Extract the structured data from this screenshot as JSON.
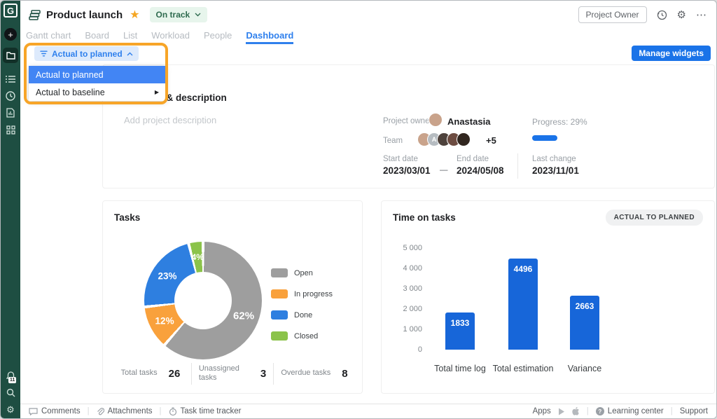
{
  "sidebar": {
    "logo_text": "G",
    "notification_count": "11"
  },
  "header": {
    "title": "Product launch",
    "status_pill": "On track",
    "owner_button": "Project Owner"
  },
  "tabs": [
    {
      "label": "Gantt chart",
      "active": false
    },
    {
      "label": "Board",
      "active": false
    },
    {
      "label": "List",
      "active": false
    },
    {
      "label": "Workload",
      "active": false
    },
    {
      "label": "People",
      "active": false
    },
    {
      "label": "Dashboard",
      "active": true
    }
  ],
  "filter": {
    "pill_label": "Actual to planned",
    "menu_items": [
      {
        "label": "Actual to planned",
        "selected": true,
        "has_submenu": false
      },
      {
        "label": "Actual to baseline",
        "selected": false,
        "has_submenu": true
      }
    ]
  },
  "toolbar": {
    "manage_widgets": "Manage widgets"
  },
  "info_card": {
    "title": "Info & description",
    "description_placeholder": "Add project description",
    "owner_label": "Project owner",
    "owner_name": "Anastasia",
    "team_label": "Team",
    "team_extra": "+5",
    "team_avatar_colors": [
      "#c9a38b",
      "#b6bcc1",
      "#4e423c",
      "#6d4c41",
      "#31261f"
    ],
    "team_avatar_letter": "A",
    "progress_label": "Progress: 29%",
    "progress_percent": 29,
    "start_date_label": "Start date",
    "start_date": "2023/03/01",
    "date_separator": "—",
    "end_date_label": "End date",
    "end_date": "2024/05/08",
    "last_change_label": "Last change",
    "last_change": "2023/11/01"
  },
  "tasks_card": {
    "title": "Tasks",
    "stats": [
      {
        "label": "Total tasks",
        "value": "26"
      },
      {
        "label": "Unassigned tasks",
        "value": "3"
      },
      {
        "label": "Overdue tasks",
        "value": "8"
      }
    ]
  },
  "time_card": {
    "title": "Time on tasks",
    "badge": "ACTUAL TO PLANNED"
  },
  "chart_data": [
    {
      "type": "pie",
      "donut": true,
      "title": "Tasks",
      "labels": [
        "Open",
        "In progress",
        "Done",
        "Closed"
      ],
      "values": [
        62,
        12,
        23,
        4
      ],
      "value_labels": [
        "62%",
        "12%",
        "23%",
        "4%"
      ],
      "colors": [
        "#9e9e9e",
        "#f9a13c",
        "#2e7fe0",
        "#8bc34a"
      ],
      "legend_position": "right",
      "start": "top",
      "direction": "clockwise"
    },
    {
      "type": "bar",
      "title": "Time on tasks",
      "categories": [
        "Total time log",
        "Total estimation",
        "Variance"
      ],
      "values": [
        1833,
        4496,
        2663
      ],
      "bar_color": "#1766d9",
      "ylim": [
        0,
        5000
      ],
      "ytick_labels": [
        "5 000",
        "4 000",
        "3 000",
        "2 000",
        "1 000",
        "0"
      ],
      "grid": false
    }
  ],
  "footer": {
    "left_items": [
      {
        "label": "Comments",
        "icon": "comment-icon"
      },
      {
        "label": "Attachments",
        "icon": "paperclip-icon"
      },
      {
        "label": "Task time tracker",
        "icon": "timer-icon"
      }
    ],
    "apps_label": "Apps",
    "learning_label": "Learning center",
    "support_label": "Support"
  }
}
